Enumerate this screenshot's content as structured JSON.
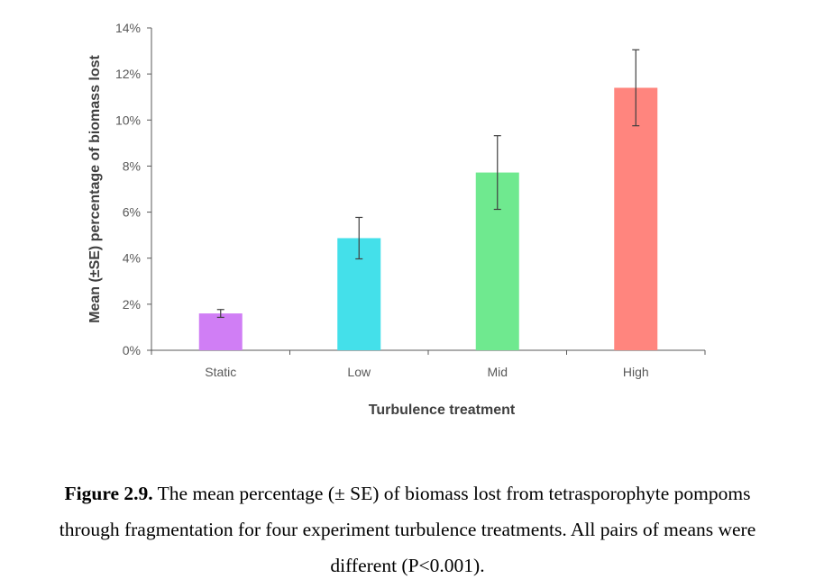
{
  "chart_data": {
    "type": "bar",
    "title": "",
    "xlabel": "Turbulence treatment",
    "ylabel": "Mean (±SE) percentage of biomass lost",
    "categories": [
      "Static",
      "Low",
      "Mid",
      "High"
    ],
    "values": [
      1.6,
      4.87,
      7.72,
      11.4
    ],
    "error_se": [
      0.17,
      0.9,
      1.6,
      1.65
    ],
    "colors": [
      "#d07ef5",
      "#44e0ea",
      "#6fe98f",
      "#ff857e"
    ],
    "ylim": [
      0,
      14
    ],
    "yticks": [
      0,
      2,
      4,
      6,
      8,
      10,
      12,
      14
    ],
    "ytick_labels": [
      "0%",
      "2%",
      "4%",
      "6%",
      "8%",
      "10%",
      "12%",
      "14%"
    ],
    "grid": false,
    "legend": "none"
  },
  "caption": {
    "lead": "Figure 2.9.",
    "line1": " The mean percentage (± SE) of biomass lost from tetrasporophyte pompoms",
    "line2": "through fragmentation for four experiment turbulence treatments. All pairs of means were",
    "line3": "different (P<0.001)."
  }
}
